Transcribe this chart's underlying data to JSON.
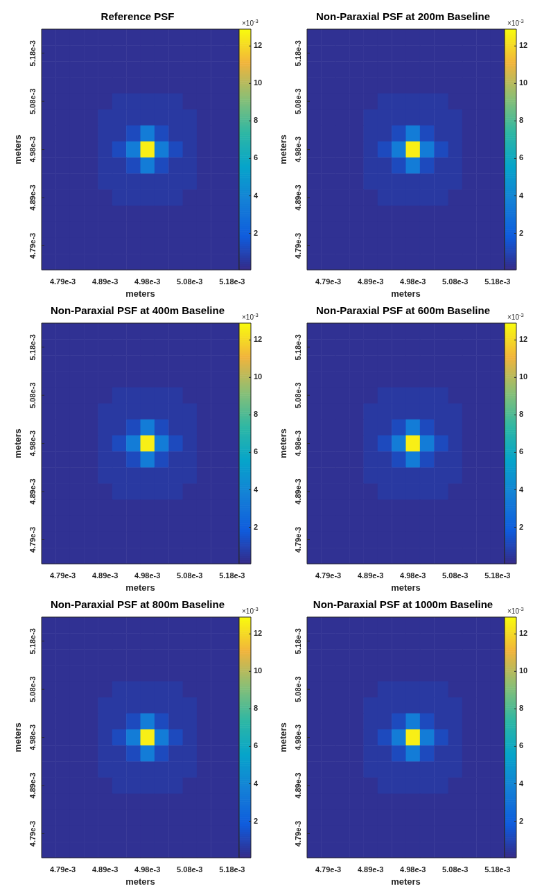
{
  "chart_data": [
    {
      "type": "heatmap",
      "title": "Reference PSF",
      "xlabel": "meters",
      "ylabel": "meters",
      "clabel": "×10$^{-3}$",
      "clim": [
        0.05,
        12.9
      ],
      "cticks": [
        2,
        4,
        6,
        8,
        10,
        12
      ],
      "categories": [
        null,
        "4.79e-3",
        null,
        null,
        "4.89e-3",
        null,
        null,
        "4.98e-3",
        null,
        null,
        "5.08e-3",
        null,
        null,
        "5.18e-3"
      ],
      "y_categories": [
        null,
        "5.18e-3",
        null,
        null,
        "5.08e-3",
        null,
        null,
        "4.98e-3",
        null,
        null,
        "4.89e-3",
        null,
        null,
        "4.79e-3",
        null
      ],
      "cells": [
        [
          0.3,
          0.3,
          0.3,
          0.3,
          0.3,
          0.3,
          0.3,
          0.3,
          0.3,
          0.3,
          0.3,
          0.3,
          0.3,
          0.3
        ],
        [
          0.3,
          0.3,
          0.3,
          0.3,
          0.3,
          0.3,
          0.3,
          0.3,
          0.3,
          0.3,
          0.3,
          0.3,
          0.3,
          0.3
        ],
        [
          0.3,
          0.3,
          0.3,
          0.3,
          0.3,
          0.3,
          0.3,
          0.3,
          0.3,
          0.3,
          0.3,
          0.3,
          0.3,
          0.3
        ],
        [
          0.3,
          0.3,
          0.3,
          0.3,
          0.3,
          0.3,
          0.3,
          0.3,
          0.3,
          0.3,
          0.3,
          0.3,
          0.3,
          0.3
        ],
        [
          0.3,
          0.3,
          0.3,
          0.3,
          0.3,
          0.6,
          0.6,
          0.6,
          0.6,
          0.6,
          0.3,
          0.3,
          0.3,
          0.3
        ],
        [
          0.3,
          0.3,
          0.3,
          0.3,
          0.6,
          0.6,
          0.6,
          0.6,
          0.6,
          0.6,
          0.6,
          0.3,
          0.3,
          0.3
        ],
        [
          0.3,
          0.3,
          0.3,
          0.3,
          0.6,
          0.6,
          1.2,
          3.5,
          1.2,
          0.6,
          0.6,
          0.3,
          0.3,
          0.3
        ],
        [
          0.3,
          0.3,
          0.3,
          0.3,
          0.6,
          1.2,
          3.5,
          12.6,
          3.5,
          1.2,
          0.6,
          0.3,
          0.3,
          0.3
        ],
        [
          0.3,
          0.3,
          0.3,
          0.3,
          0.6,
          0.6,
          1.2,
          3.5,
          1.2,
          0.6,
          0.6,
          0.3,
          0.3,
          0.3
        ],
        [
          0.3,
          0.3,
          0.3,
          0.3,
          0.6,
          0.6,
          0.6,
          0.6,
          0.6,
          0.6,
          0.6,
          0.3,
          0.3,
          0.3
        ],
        [
          0.3,
          0.3,
          0.3,
          0.3,
          0.3,
          0.6,
          0.6,
          0.6,
          0.6,
          0.6,
          0.3,
          0.3,
          0.3,
          0.3
        ],
        [
          0.3,
          0.3,
          0.3,
          0.3,
          0.3,
          0.3,
          0.3,
          0.3,
          0.3,
          0.3,
          0.3,
          0.3,
          0.3,
          0.3
        ],
        [
          0.3,
          0.3,
          0.3,
          0.3,
          0.3,
          0.3,
          0.3,
          0.3,
          0.3,
          0.3,
          0.3,
          0.3,
          0.3,
          0.3
        ],
        [
          0.3,
          0.3,
          0.3,
          0.3,
          0.3,
          0.3,
          0.3,
          0.3,
          0.3,
          0.3,
          0.3,
          0.3,
          0.3,
          0.3
        ],
        [
          0.3,
          0.3,
          0.3,
          0.3,
          0.3,
          0.3,
          0.3,
          0.3,
          0.3,
          0.3,
          0.3,
          0.3,
          0.3,
          0.3
        ]
      ]
    },
    {
      "type": "heatmap",
      "title": "Non-Paraxial PSF at 200m Baseline",
      "xlabel": "meters",
      "ylabel": "meters",
      "clabel": "×10$^{-3}$",
      "clim": [
        0.05,
        12.9
      ],
      "cticks": [
        2,
        4,
        6,
        8,
        10,
        12
      ],
      "categories": [
        null,
        "4.79e-3",
        null,
        null,
        "4.89e-3",
        null,
        null,
        "4.98e-3",
        null,
        null,
        "5.08e-3",
        null,
        null,
        "5.18e-3"
      ],
      "y_categories": [
        null,
        "5.18e-3",
        null,
        null,
        "5.08e-3",
        null,
        null,
        "4.98e-3",
        null,
        null,
        "4.89e-3",
        null,
        null,
        "4.79e-3",
        null
      ],
      "cells": [
        [
          0.3,
          0.3,
          0.3,
          0.3,
          0.3,
          0.3,
          0.3,
          0.3,
          0.3,
          0.3,
          0.3,
          0.3,
          0.3,
          0.3
        ],
        [
          0.3,
          0.3,
          0.3,
          0.3,
          0.3,
          0.3,
          0.3,
          0.3,
          0.3,
          0.3,
          0.3,
          0.3,
          0.3,
          0.3
        ],
        [
          0.3,
          0.3,
          0.3,
          0.3,
          0.3,
          0.3,
          0.3,
          0.3,
          0.3,
          0.3,
          0.3,
          0.3,
          0.3,
          0.3
        ],
        [
          0.3,
          0.3,
          0.3,
          0.3,
          0.3,
          0.3,
          0.3,
          0.3,
          0.3,
          0.3,
          0.3,
          0.3,
          0.3,
          0.3
        ],
        [
          0.3,
          0.3,
          0.3,
          0.3,
          0.3,
          0.6,
          0.6,
          0.6,
          0.6,
          0.6,
          0.3,
          0.3,
          0.3,
          0.3
        ],
        [
          0.3,
          0.3,
          0.3,
          0.3,
          0.6,
          0.6,
          0.6,
          0.6,
          0.6,
          0.6,
          0.6,
          0.3,
          0.3,
          0.3
        ],
        [
          0.3,
          0.3,
          0.3,
          0.3,
          0.6,
          0.6,
          1.2,
          3.5,
          1.2,
          0.6,
          0.6,
          0.3,
          0.3,
          0.3
        ],
        [
          0.3,
          0.3,
          0.3,
          0.3,
          0.6,
          1.2,
          3.5,
          12.6,
          3.5,
          1.2,
          0.6,
          0.3,
          0.3,
          0.3
        ],
        [
          0.3,
          0.3,
          0.3,
          0.3,
          0.6,
          0.6,
          1.2,
          3.5,
          1.2,
          0.6,
          0.6,
          0.3,
          0.3,
          0.3
        ],
        [
          0.3,
          0.3,
          0.3,
          0.3,
          0.6,
          0.6,
          0.6,
          0.6,
          0.6,
          0.6,
          0.6,
          0.3,
          0.3,
          0.3
        ],
        [
          0.3,
          0.3,
          0.3,
          0.3,
          0.3,
          0.6,
          0.6,
          0.6,
          0.6,
          0.6,
          0.3,
          0.3,
          0.3,
          0.3
        ],
        [
          0.3,
          0.3,
          0.3,
          0.3,
          0.3,
          0.3,
          0.3,
          0.3,
          0.3,
          0.3,
          0.3,
          0.3,
          0.3,
          0.3
        ],
        [
          0.3,
          0.3,
          0.3,
          0.3,
          0.3,
          0.3,
          0.3,
          0.3,
          0.3,
          0.3,
          0.3,
          0.3,
          0.3,
          0.3
        ],
        [
          0.3,
          0.3,
          0.3,
          0.3,
          0.3,
          0.3,
          0.3,
          0.3,
          0.3,
          0.3,
          0.3,
          0.3,
          0.3,
          0.3
        ],
        [
          0.3,
          0.3,
          0.3,
          0.3,
          0.3,
          0.3,
          0.3,
          0.3,
          0.3,
          0.3,
          0.3,
          0.3,
          0.3,
          0.3
        ]
      ]
    },
    {
      "type": "heatmap",
      "title": "Non-Paraxial PSF at 400m Baseline",
      "xlabel": "meters",
      "ylabel": "meters",
      "clabel": "×10$^{-3}$",
      "clim": [
        0.05,
        12.9
      ],
      "cticks": [
        2,
        4,
        6,
        8,
        10,
        12
      ],
      "categories": [
        null,
        "4.79e-3",
        null,
        null,
        "4.89e-3",
        null,
        null,
        "4.98e-3",
        null,
        null,
        "5.08e-3",
        null,
        null,
        "5.18e-3"
      ],
      "y_categories": [
        null,
        "5.18e-3",
        null,
        null,
        "5.08e-3",
        null,
        null,
        "4.98e-3",
        null,
        null,
        "4.89e-3",
        null,
        null,
        "4.79e-3",
        null
      ],
      "cells": [
        [
          0.3,
          0.3,
          0.3,
          0.3,
          0.3,
          0.3,
          0.3,
          0.3,
          0.3,
          0.3,
          0.3,
          0.3,
          0.3,
          0.3
        ],
        [
          0.3,
          0.3,
          0.3,
          0.3,
          0.3,
          0.3,
          0.3,
          0.3,
          0.3,
          0.3,
          0.3,
          0.3,
          0.3,
          0.3
        ],
        [
          0.3,
          0.3,
          0.3,
          0.3,
          0.3,
          0.3,
          0.3,
          0.3,
          0.3,
          0.3,
          0.3,
          0.3,
          0.3,
          0.3
        ],
        [
          0.3,
          0.3,
          0.3,
          0.3,
          0.3,
          0.3,
          0.3,
          0.3,
          0.3,
          0.3,
          0.3,
          0.3,
          0.3,
          0.3
        ],
        [
          0.3,
          0.3,
          0.3,
          0.3,
          0.3,
          0.6,
          0.6,
          0.6,
          0.6,
          0.6,
          0.3,
          0.3,
          0.3,
          0.3
        ],
        [
          0.3,
          0.3,
          0.3,
          0.3,
          0.6,
          0.6,
          0.6,
          0.6,
          0.6,
          0.6,
          0.6,
          0.3,
          0.3,
          0.3
        ],
        [
          0.3,
          0.3,
          0.3,
          0.3,
          0.6,
          0.6,
          1.2,
          3.5,
          1.2,
          0.6,
          0.6,
          0.3,
          0.3,
          0.3
        ],
        [
          0.3,
          0.3,
          0.3,
          0.3,
          0.6,
          1.2,
          3.5,
          12.6,
          3.5,
          1.2,
          0.6,
          0.3,
          0.3,
          0.3
        ],
        [
          0.3,
          0.3,
          0.3,
          0.3,
          0.6,
          0.6,
          1.2,
          3.5,
          1.2,
          0.6,
          0.6,
          0.3,
          0.3,
          0.3
        ],
        [
          0.3,
          0.3,
          0.3,
          0.3,
          0.6,
          0.6,
          0.6,
          0.6,
          0.6,
          0.6,
          0.6,
          0.3,
          0.3,
          0.3
        ],
        [
          0.3,
          0.3,
          0.3,
          0.3,
          0.3,
          0.6,
          0.6,
          0.6,
          0.6,
          0.6,
          0.3,
          0.3,
          0.3,
          0.3
        ],
        [
          0.3,
          0.3,
          0.3,
          0.3,
          0.3,
          0.3,
          0.3,
          0.3,
          0.3,
          0.3,
          0.3,
          0.3,
          0.3,
          0.3
        ],
        [
          0.3,
          0.3,
          0.3,
          0.3,
          0.3,
          0.3,
          0.3,
          0.3,
          0.3,
          0.3,
          0.3,
          0.3,
          0.3,
          0.3
        ],
        [
          0.3,
          0.3,
          0.3,
          0.3,
          0.3,
          0.3,
          0.3,
          0.3,
          0.3,
          0.3,
          0.3,
          0.3,
          0.3,
          0.3
        ],
        [
          0.3,
          0.3,
          0.3,
          0.3,
          0.3,
          0.3,
          0.3,
          0.3,
          0.3,
          0.3,
          0.3,
          0.3,
          0.3,
          0.3
        ]
      ]
    },
    {
      "type": "heatmap",
      "title": "Non-Paraxial PSF at 600m Baseline",
      "xlabel": "meters",
      "ylabel": "meters",
      "clabel": "×10$^{-3}$",
      "clim": [
        0.05,
        12.9
      ],
      "cticks": [
        2,
        4,
        6,
        8,
        10,
        12
      ],
      "categories": [
        null,
        "4.79e-3",
        null,
        null,
        "4.89e-3",
        null,
        null,
        "4.98e-3",
        null,
        null,
        "5.08e-3",
        null,
        null,
        "5.18e-3"
      ],
      "y_categories": [
        null,
        "5.18e-3",
        null,
        null,
        "5.08e-3",
        null,
        null,
        "4.98e-3",
        null,
        null,
        "4.89e-3",
        null,
        null,
        "4.79e-3",
        null
      ],
      "cells": [
        [
          0.3,
          0.3,
          0.3,
          0.3,
          0.3,
          0.3,
          0.3,
          0.3,
          0.3,
          0.3,
          0.3,
          0.3,
          0.3,
          0.3
        ],
        [
          0.3,
          0.3,
          0.3,
          0.3,
          0.3,
          0.3,
          0.3,
          0.3,
          0.3,
          0.3,
          0.3,
          0.3,
          0.3,
          0.3
        ],
        [
          0.3,
          0.3,
          0.3,
          0.3,
          0.3,
          0.3,
          0.3,
          0.3,
          0.3,
          0.3,
          0.3,
          0.3,
          0.3,
          0.3
        ],
        [
          0.3,
          0.3,
          0.3,
          0.3,
          0.3,
          0.3,
          0.3,
          0.3,
          0.3,
          0.3,
          0.3,
          0.3,
          0.3,
          0.3
        ],
        [
          0.3,
          0.3,
          0.3,
          0.3,
          0.3,
          0.6,
          0.6,
          0.6,
          0.6,
          0.6,
          0.3,
          0.3,
          0.3,
          0.3
        ],
        [
          0.3,
          0.3,
          0.3,
          0.3,
          0.6,
          0.6,
          0.6,
          0.6,
          0.6,
          0.6,
          0.6,
          0.3,
          0.3,
          0.3
        ],
        [
          0.3,
          0.3,
          0.3,
          0.3,
          0.6,
          0.6,
          1.2,
          3.5,
          1.2,
          0.6,
          0.6,
          0.3,
          0.3,
          0.3
        ],
        [
          0.3,
          0.3,
          0.3,
          0.3,
          0.6,
          1.2,
          3.5,
          12.6,
          3.5,
          1.2,
          0.6,
          0.3,
          0.3,
          0.3
        ],
        [
          0.3,
          0.3,
          0.3,
          0.3,
          0.6,
          0.6,
          1.2,
          3.5,
          1.2,
          0.6,
          0.6,
          0.3,
          0.3,
          0.3
        ],
        [
          0.3,
          0.3,
          0.3,
          0.3,
          0.6,
          0.6,
          0.6,
          0.6,
          0.6,
          0.6,
          0.6,
          0.3,
          0.3,
          0.3
        ],
        [
          0.3,
          0.3,
          0.3,
          0.3,
          0.3,
          0.6,
          0.6,
          0.6,
          0.6,
          0.6,
          0.3,
          0.3,
          0.3,
          0.3
        ],
        [
          0.3,
          0.3,
          0.3,
          0.3,
          0.3,
          0.3,
          0.3,
          0.3,
          0.3,
          0.3,
          0.3,
          0.3,
          0.3,
          0.3
        ],
        [
          0.3,
          0.3,
          0.3,
          0.3,
          0.3,
          0.3,
          0.3,
          0.3,
          0.3,
          0.3,
          0.3,
          0.3,
          0.3,
          0.3
        ],
        [
          0.3,
          0.3,
          0.3,
          0.3,
          0.3,
          0.3,
          0.3,
          0.3,
          0.3,
          0.3,
          0.3,
          0.3,
          0.3,
          0.3
        ],
        [
          0.3,
          0.3,
          0.3,
          0.3,
          0.3,
          0.3,
          0.3,
          0.3,
          0.3,
          0.3,
          0.3,
          0.3,
          0.3,
          0.3
        ]
      ]
    },
    {
      "type": "heatmap",
      "title": "Non-Paraxial PSF at 800m Baseline",
      "xlabel": "meters",
      "ylabel": "meters",
      "clabel": "×10$^{-3}$",
      "clim": [
        0.05,
        12.9
      ],
      "cticks": [
        2,
        4,
        6,
        8,
        10,
        12
      ],
      "categories": [
        null,
        "4.79e-3",
        null,
        null,
        "4.89e-3",
        null,
        null,
        "4.98e-3",
        null,
        null,
        "5.08e-3",
        null,
        null,
        "5.18e-3"
      ],
      "y_categories": [
        null,
        "5.18e-3",
        null,
        null,
        "5.08e-3",
        null,
        null,
        "4.98e-3",
        null,
        null,
        "4.89e-3",
        null,
        null,
        "4.79e-3",
        null
      ],
      "cells": [
        [
          0.3,
          0.3,
          0.3,
          0.3,
          0.3,
          0.3,
          0.3,
          0.3,
          0.3,
          0.3,
          0.3,
          0.3,
          0.3,
          0.3
        ],
        [
          0.3,
          0.3,
          0.3,
          0.3,
          0.3,
          0.3,
          0.3,
          0.3,
          0.3,
          0.3,
          0.3,
          0.3,
          0.3,
          0.3
        ],
        [
          0.3,
          0.3,
          0.3,
          0.3,
          0.3,
          0.3,
          0.3,
          0.3,
          0.3,
          0.3,
          0.3,
          0.3,
          0.3,
          0.3
        ],
        [
          0.3,
          0.3,
          0.3,
          0.3,
          0.3,
          0.3,
          0.3,
          0.3,
          0.3,
          0.3,
          0.3,
          0.3,
          0.3,
          0.3
        ],
        [
          0.3,
          0.3,
          0.3,
          0.3,
          0.3,
          0.6,
          0.6,
          0.6,
          0.6,
          0.6,
          0.3,
          0.3,
          0.3,
          0.3
        ],
        [
          0.3,
          0.3,
          0.3,
          0.3,
          0.6,
          0.6,
          0.6,
          0.6,
          0.6,
          0.6,
          0.6,
          0.3,
          0.3,
          0.3
        ],
        [
          0.3,
          0.3,
          0.3,
          0.3,
          0.6,
          0.6,
          1.2,
          3.5,
          1.2,
          0.6,
          0.6,
          0.3,
          0.3,
          0.3
        ],
        [
          0.3,
          0.3,
          0.3,
          0.3,
          0.6,
          1.2,
          3.5,
          12.6,
          3.5,
          1.2,
          0.6,
          0.3,
          0.3,
          0.3
        ],
        [
          0.3,
          0.3,
          0.3,
          0.3,
          0.6,
          0.6,
          1.2,
          3.5,
          1.2,
          0.6,
          0.6,
          0.3,
          0.3,
          0.3
        ],
        [
          0.3,
          0.3,
          0.3,
          0.3,
          0.6,
          0.6,
          0.6,
          0.6,
          0.6,
          0.6,
          0.6,
          0.3,
          0.3,
          0.3
        ],
        [
          0.3,
          0.3,
          0.3,
          0.3,
          0.3,
          0.6,
          0.6,
          0.6,
          0.6,
          0.6,
          0.3,
          0.3,
          0.3,
          0.3
        ],
        [
          0.3,
          0.3,
          0.3,
          0.3,
          0.3,
          0.3,
          0.3,
          0.3,
          0.3,
          0.3,
          0.3,
          0.3,
          0.3,
          0.3
        ],
        [
          0.3,
          0.3,
          0.3,
          0.3,
          0.3,
          0.3,
          0.3,
          0.3,
          0.3,
          0.3,
          0.3,
          0.3,
          0.3,
          0.3
        ],
        [
          0.3,
          0.3,
          0.3,
          0.3,
          0.3,
          0.3,
          0.3,
          0.3,
          0.3,
          0.3,
          0.3,
          0.3,
          0.3,
          0.3
        ],
        [
          0.3,
          0.3,
          0.3,
          0.3,
          0.3,
          0.3,
          0.3,
          0.3,
          0.3,
          0.3,
          0.3,
          0.3,
          0.3,
          0.3
        ]
      ]
    },
    {
      "type": "heatmap",
      "title": "Non-Paraxial PSF at 1000m Baseline",
      "xlabel": "meters",
      "ylabel": "meters",
      "clabel": "×10$^{-3}$",
      "clim": [
        0.05,
        12.9
      ],
      "cticks": [
        2,
        4,
        6,
        8,
        10,
        12
      ],
      "categories": [
        null,
        "4.79e-3",
        null,
        null,
        "4.89e-3",
        null,
        null,
        "4.98e-3",
        null,
        null,
        "5.08e-3",
        null,
        null,
        "5.18e-3"
      ],
      "y_categories": [
        null,
        "5.18e-3",
        null,
        null,
        "5.08e-3",
        null,
        null,
        "4.98e-3",
        null,
        null,
        "4.89e-3",
        null,
        null,
        "4.79e-3",
        null
      ],
      "cells": [
        [
          0.3,
          0.3,
          0.3,
          0.3,
          0.3,
          0.3,
          0.3,
          0.3,
          0.3,
          0.3,
          0.3,
          0.3,
          0.3,
          0.3
        ],
        [
          0.3,
          0.3,
          0.3,
          0.3,
          0.3,
          0.3,
          0.3,
          0.3,
          0.3,
          0.3,
          0.3,
          0.3,
          0.3,
          0.3
        ],
        [
          0.3,
          0.3,
          0.3,
          0.3,
          0.3,
          0.3,
          0.3,
          0.3,
          0.3,
          0.3,
          0.3,
          0.3,
          0.3,
          0.3
        ],
        [
          0.3,
          0.3,
          0.3,
          0.3,
          0.3,
          0.3,
          0.3,
          0.3,
          0.3,
          0.3,
          0.3,
          0.3,
          0.3,
          0.3
        ],
        [
          0.3,
          0.3,
          0.3,
          0.3,
          0.3,
          0.6,
          0.6,
          0.6,
          0.6,
          0.6,
          0.3,
          0.3,
          0.3,
          0.3
        ],
        [
          0.3,
          0.3,
          0.3,
          0.3,
          0.6,
          0.6,
          0.6,
          0.6,
          0.6,
          0.6,
          0.6,
          0.3,
          0.3,
          0.3
        ],
        [
          0.3,
          0.3,
          0.3,
          0.3,
          0.6,
          0.6,
          1.2,
          3.5,
          1.2,
          0.6,
          0.6,
          0.3,
          0.3,
          0.3
        ],
        [
          0.3,
          0.3,
          0.3,
          0.3,
          0.6,
          1.2,
          3.5,
          12.6,
          3.5,
          1.2,
          0.6,
          0.3,
          0.3,
          0.3
        ],
        [
          0.3,
          0.3,
          0.3,
          0.3,
          0.6,
          0.6,
          1.2,
          3.5,
          1.2,
          0.6,
          0.6,
          0.3,
          0.3,
          0.3
        ],
        [
          0.3,
          0.3,
          0.3,
          0.3,
          0.6,
          0.6,
          0.6,
          0.6,
          0.6,
          0.6,
          0.6,
          0.3,
          0.3,
          0.3
        ],
        [
          0.3,
          0.3,
          0.3,
          0.3,
          0.3,
          0.6,
          0.6,
          0.6,
          0.6,
          0.6,
          0.3,
          0.3,
          0.3,
          0.3
        ],
        [
          0.3,
          0.3,
          0.3,
          0.3,
          0.3,
          0.3,
          0.3,
          0.3,
          0.3,
          0.3,
          0.3,
          0.3,
          0.3,
          0.3
        ],
        [
          0.3,
          0.3,
          0.3,
          0.3,
          0.3,
          0.3,
          0.3,
          0.3,
          0.3,
          0.3,
          0.3,
          0.3,
          0.3,
          0.3
        ],
        [
          0.3,
          0.3,
          0.3,
          0.3,
          0.3,
          0.3,
          0.3,
          0.3,
          0.3,
          0.3,
          0.3,
          0.3,
          0.3,
          0.3
        ],
        [
          0.3,
          0.3,
          0.3,
          0.3,
          0.3,
          0.3,
          0.3,
          0.3,
          0.3,
          0.3,
          0.3,
          0.3,
          0.3,
          0.3
        ]
      ]
    }
  ]
}
